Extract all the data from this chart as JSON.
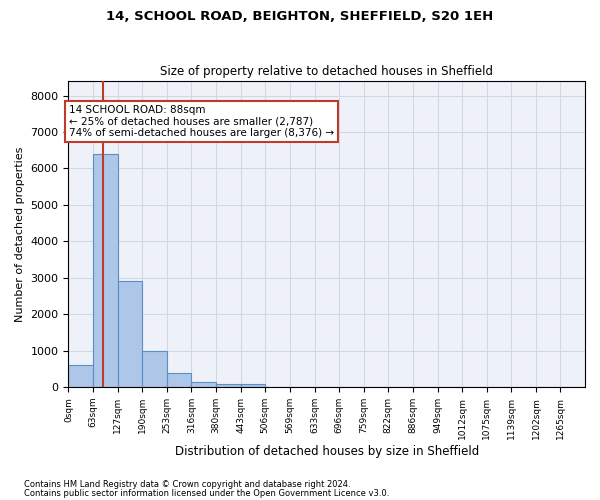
{
  "title1": "14, SCHOOL ROAD, BEIGHTON, SHEFFIELD, S20 1EH",
  "title2": "Size of property relative to detached houses in Sheffield",
  "xlabel": "Distribution of detached houses by size in Sheffield",
  "ylabel": "Number of detached properties",
  "bin_edges": [
    0,
    63,
    127,
    190,
    253,
    316,
    380,
    443,
    506,
    569,
    633,
    696,
    759,
    822,
    886,
    949,
    1012,
    1075,
    1139,
    1202,
    1265,
    1328
  ],
  "bin_labels": [
    "0sqm",
    "63sqm",
    "127sqm",
    "190sqm",
    "253sqm",
    "316sqm",
    "380sqm",
    "443sqm",
    "506sqm",
    "569sqm",
    "633sqm",
    "696sqm",
    "759sqm",
    "822sqm",
    "886sqm",
    "949sqm",
    "1012sqm",
    "1075sqm",
    "1139sqm",
    "1202sqm",
    "1265sqm"
  ],
  "bar_heights": [
    600,
    6400,
    2900,
    1000,
    380,
    150,
    80,
    80,
    10,
    5,
    3,
    2,
    1,
    1,
    0,
    0,
    0,
    0,
    0,
    0,
    0
  ],
  "bar_color": "#aec6e8",
  "bar_edgecolor": "#5a8fc2",
  "property_size": 88,
  "property_line_color": "#c0392b",
  "annotation_line1": "14 SCHOOL ROAD: 88sqm",
  "annotation_line2": "← 25% of detached houses are smaller (2,787)",
  "annotation_line3": "74% of semi-detached houses are larger (8,376) →",
  "annotation_box_color": "#c0392b",
  "ylim": [
    0,
    8400
  ],
  "yticks": [
    0,
    1000,
    2000,
    3000,
    4000,
    5000,
    6000,
    7000,
    8000
  ],
  "grid_color": "#d0d8e8",
  "background_color": "#eef2f8",
  "footer1": "Contains HM Land Registry data © Crown copyright and database right 2024.",
  "footer2": "Contains public sector information licensed under the Open Government Licence v3.0."
}
